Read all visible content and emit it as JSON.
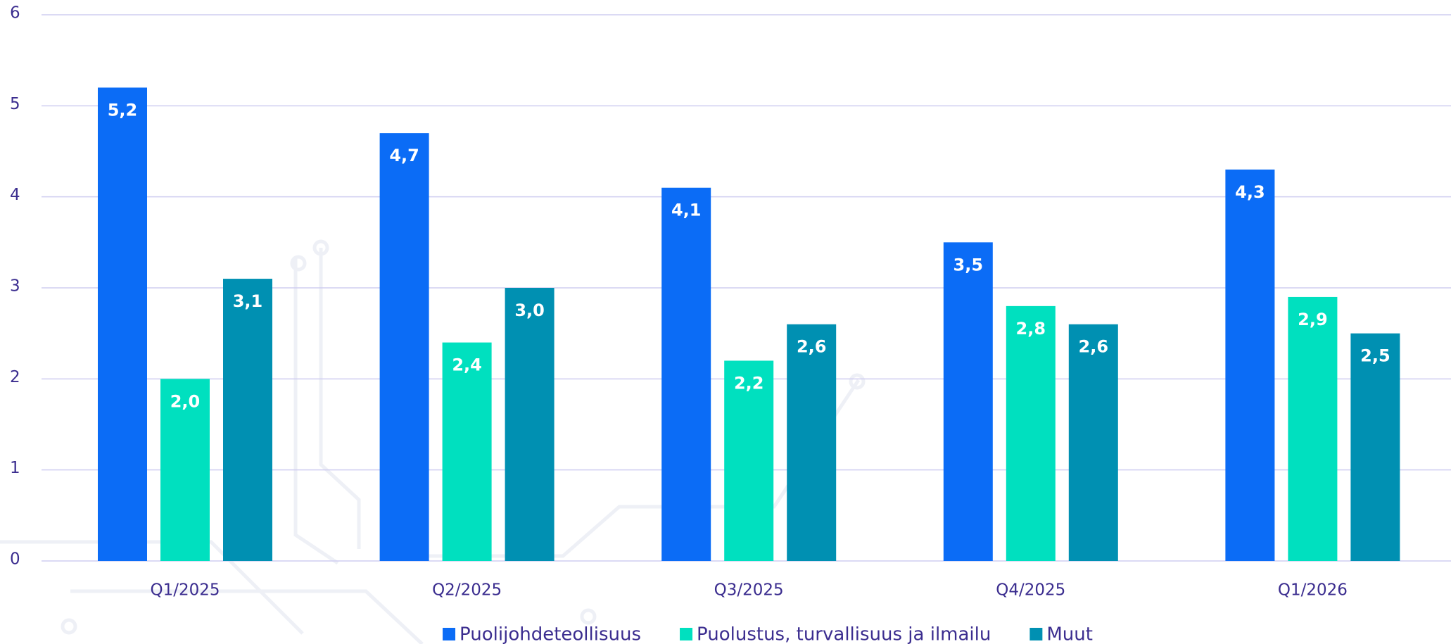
{
  "chart_data": {
    "type": "bar",
    "categories": [
      "Q1/2025",
      "Q2/2025",
      "Q3/2025",
      "Q4/2025",
      "Q1/2026"
    ],
    "series": [
      {
        "name": "Puolijohdeteollisuus",
        "color": "#0b6cf6",
        "values": [
          5.2,
          4.7,
          4.1,
          3.5,
          4.3
        ],
        "value_labels": [
          "5,2",
          "4,7",
          "4,1",
          "3,5",
          "4,3"
        ]
      },
      {
        "name": "Puolustus, turvallisuus ja ilmailu",
        "color": "#00e0bf",
        "values": [
          2.0,
          2.4,
          2.2,
          2.8,
          2.9
        ],
        "value_labels": [
          "2,0",
          "2,4",
          "2,2",
          "2,8",
          "2,9"
        ]
      },
      {
        "name": "Muut",
        "color": "#0090b2",
        "values": [
          3.1,
          3.0,
          2.6,
          2.6,
          2.5
        ],
        "value_labels": [
          "3,1",
          "3,0",
          "2,6",
          "2,6",
          "2,5"
        ]
      }
    ],
    "ylim": [
      0,
      6
    ],
    "yticks": [
      0,
      1,
      2,
      3,
      4,
      5,
      6
    ],
    "grid": true,
    "legend": "bottom"
  }
}
